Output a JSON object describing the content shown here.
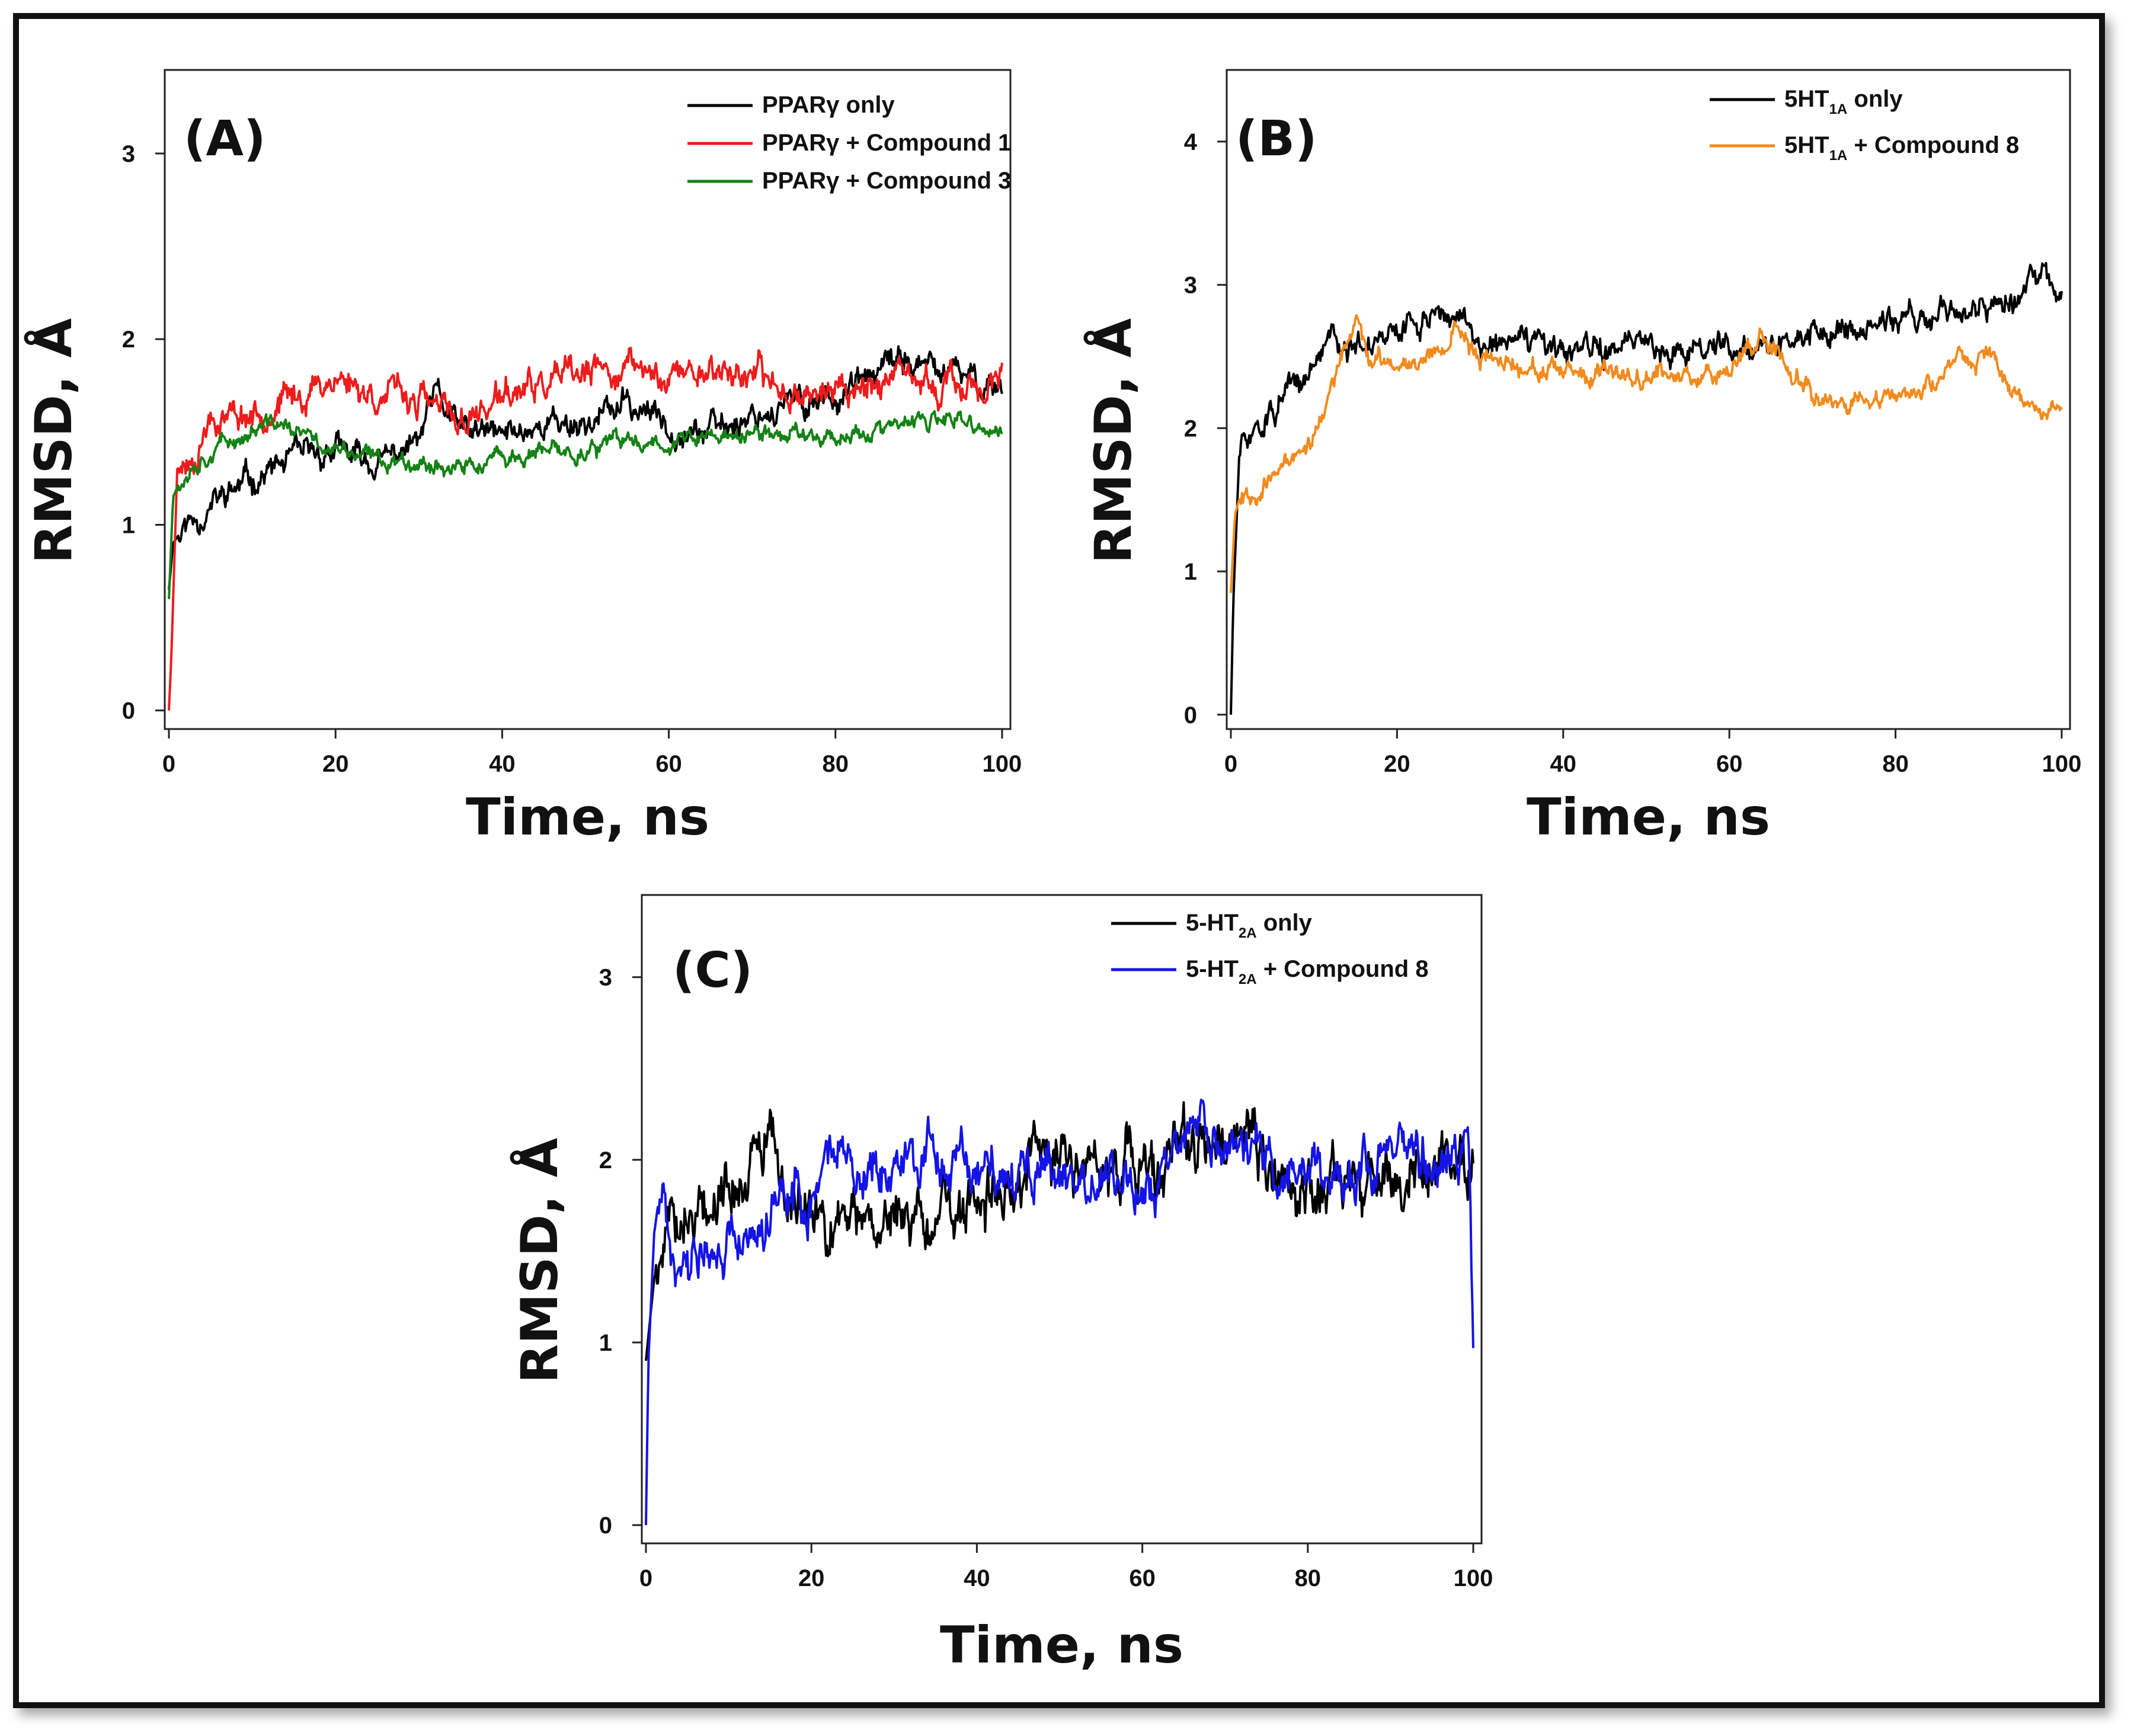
{
  "figure": {
    "frame_color": "#111111"
  },
  "chart_data": [
    {
      "type": "line",
      "id": "A",
      "panel_label": "(A)",
      "xlabel": "Time, ns",
      "ylabel": "RMSD, Å",
      "xlim": [
        -0.5,
        101
      ],
      "ylim": [
        -0.1,
        3.45
      ],
      "xticks": [
        0,
        20,
        40,
        60,
        80,
        100
      ],
      "yticks": [
        0,
        1,
        2,
        3
      ],
      "legend_position": "top-right",
      "series": [
        {
          "name": "PPARγ only",
          "legend": {
            "pre": "PPARγ only",
            "sub": "",
            "post": ""
          },
          "color": "#000000",
          "seed": 11,
          "noise": 0.055,
          "path": [
            [
              0,
              0.65
            ],
            [
              0.5,
              0.9
            ],
            [
              2,
              1.0
            ],
            [
              5,
              1.1
            ],
            [
              10,
              1.25
            ],
            [
              15,
              1.35
            ],
            [
              20,
              1.4
            ],
            [
              25,
              1.32
            ],
            [
              30,
              1.45
            ],
            [
              32,
              1.7
            ],
            [
              35,
              1.5
            ],
            [
              40,
              1.48
            ],
            [
              45,
              1.55
            ],
            [
              50,
              1.55
            ],
            [
              55,
              1.65
            ],
            [
              60,
              1.55
            ],
            [
              65,
              1.5
            ],
            [
              70,
              1.6
            ],
            [
              75,
              1.65
            ],
            [
              80,
              1.7
            ],
            [
              85,
              1.8
            ],
            [
              88,
              1.9
            ],
            [
              90,
              1.85
            ],
            [
              95,
              1.8
            ],
            [
              100,
              1.75
            ]
          ]
        },
        {
          "name": "PPARγ + Compound 1",
          "legend": {
            "pre": "PPARγ + Compound 1",
            "sub": "",
            "post": ""
          },
          "color": "#ee1c1c",
          "seed": 23,
          "noise": 0.06,
          "path": [
            [
              0,
              0.0
            ],
            [
              0.3,
              0.3
            ],
            [
              1,
              1.3
            ],
            [
              3,
              1.38
            ],
            [
              5,
              1.6
            ],
            [
              10,
              1.6
            ],
            [
              15,
              1.68
            ],
            [
              20,
              1.8
            ],
            [
              25,
              1.7
            ],
            [
              30,
              1.68
            ],
            [
              35,
              1.55
            ],
            [
              40,
              1.68
            ],
            [
              45,
              1.75
            ],
            [
              50,
              1.8
            ],
            [
              55,
              1.85
            ],
            [
              60,
              1.8
            ],
            [
              65,
              1.85
            ],
            [
              70,
              1.8
            ],
            [
              75,
              1.72
            ],
            [
              80,
              1.72
            ],
            [
              85,
              1.78
            ],
            [
              90,
              1.75
            ],
            [
              95,
              1.75
            ],
            [
              100,
              1.75
            ]
          ]
        },
        {
          "name": "PPARγ + Compound 3",
          "legend": {
            "pre": "PPARγ + Compound 3",
            "sub": "",
            "post": ""
          },
          "color": "#148214",
          "seed": 37,
          "noise": 0.035,
          "path": [
            [
              0,
              0.6
            ],
            [
              0.5,
              1.15
            ],
            [
              2,
              1.3
            ],
            [
              5,
              1.4
            ],
            [
              10,
              1.5
            ],
            [
              13,
              1.55
            ],
            [
              15,
              1.5
            ],
            [
              20,
              1.4
            ],
            [
              25,
              1.35
            ],
            [
              30,
              1.35
            ],
            [
              35,
              1.3
            ],
            [
              40,
              1.35
            ],
            [
              45,
              1.38
            ],
            [
              50,
              1.4
            ],
            [
              55,
              1.45
            ],
            [
              60,
              1.45
            ],
            [
              65,
              1.47
            ],
            [
              70,
              1.48
            ],
            [
              75,
              1.5
            ],
            [
              80,
              1.48
            ],
            [
              85,
              1.5
            ],
            [
              90,
              1.55
            ],
            [
              95,
              1.55
            ],
            [
              100,
              1.48
            ]
          ]
        }
      ]
    },
    {
      "type": "line",
      "id": "B",
      "panel_label": "(B)",
      "xlabel": "Time, ns",
      "ylabel": "RMSD, Å",
      "xlim": [
        -0.5,
        101
      ],
      "ylim": [
        -0.1,
        4.5
      ],
      "xticks": [
        0,
        20,
        40,
        60,
        80,
        100
      ],
      "yticks": [
        0,
        1,
        2,
        3,
        4
      ],
      "legend_position": "top-right",
      "series": [
        {
          "name": "5HT1A only",
          "legend": {
            "pre": "5HT",
            "sub": "1A",
            "post": " only"
          },
          "color": "#000000",
          "seed": 51,
          "noise": 0.07,
          "path": [
            [
              0,
              0.0
            ],
            [
              0.3,
              0.8
            ],
            [
              1,
              1.8
            ],
            [
              3,
              2.0
            ],
            [
              5,
              2.1
            ],
            [
              10,
              2.4
            ],
            [
              12,
              2.7
            ],
            [
              15,
              2.55
            ],
            [
              20,
              2.65
            ],
            [
              25,
              2.85
            ],
            [
              27,
              2.75
            ],
            [
              30,
              2.6
            ],
            [
              35,
              2.6
            ],
            [
              40,
              2.5
            ],
            [
              45,
              2.55
            ],
            [
              50,
              2.6
            ],
            [
              55,
              2.55
            ],
            [
              60,
              2.6
            ],
            [
              65,
              2.6
            ],
            [
              70,
              2.65
            ],
            [
              75,
              2.7
            ],
            [
              80,
              2.75
            ],
            [
              85,
              2.8
            ],
            [
              90,
              2.85
            ],
            [
              95,
              2.9
            ],
            [
              98,
              3.1
            ],
            [
              100,
              2.85
            ]
          ]
        },
        {
          "name": "5HT1A + Compound 8",
          "legend": {
            "pre": "5HT",
            "sub": "1A",
            "post": " + Compound 8"
          },
          "color": "#f28b1e",
          "seed": 67,
          "noise": 0.05,
          "path": [
            [
              0,
              0.85
            ],
            [
              0.5,
              1.4
            ],
            [
              1,
              1.5
            ],
            [
              5,
              1.65
            ],
            [
              10,
              1.95
            ],
            [
              13,
              2.4
            ],
            [
              15,
              2.75
            ],
            [
              17,
              2.45
            ],
            [
              20,
              2.45
            ],
            [
              25,
              2.55
            ],
            [
              27,
              2.7
            ],
            [
              30,
              2.5
            ],
            [
              35,
              2.45
            ],
            [
              40,
              2.35
            ],
            [
              45,
              2.35
            ],
            [
              50,
              2.4
            ],
            [
              55,
              2.35
            ],
            [
              60,
              2.45
            ],
            [
              64,
              2.65
            ],
            [
              67,
              2.45
            ],
            [
              70,
              2.25
            ],
            [
              75,
              2.2
            ],
            [
              80,
              2.2
            ],
            [
              85,
              2.3
            ],
            [
              88,
              2.5
            ],
            [
              92,
              2.5
            ],
            [
              94,
              2.2
            ],
            [
              100,
              2.15
            ]
          ]
        }
      ]
    },
    {
      "type": "line",
      "id": "C",
      "panel_label": "(C)",
      "xlabel": "Time, ns",
      "ylabel": "RMSD, Å",
      "xlim": [
        -0.5,
        101
      ],
      "ylim": [
        -0.1,
        3.45
      ],
      "xticks": [
        0,
        20,
        40,
        60,
        80,
        100
      ],
      "yticks": [
        0,
        1,
        2,
        3
      ],
      "legend_position": "top-right",
      "series": [
        {
          "name": "5-HT2A only",
          "legend": {
            "pre": "5-HT",
            "sub": "2A",
            "post": " only"
          },
          "color": "#000000",
          "seed": 79,
          "noise": 0.12,
          "path": [
            [
              0,
              0.9
            ],
            [
              1,
              1.35
            ],
            [
              3,
              1.7
            ],
            [
              5,
              1.75
            ],
            [
              10,
              1.85
            ],
            [
              15,
              2.05
            ],
            [
              17,
              1.8
            ],
            [
              20,
              1.7
            ],
            [
              25,
              1.65
            ],
            [
              30,
              1.7
            ],
            [
              35,
              1.65
            ],
            [
              40,
              1.7
            ],
            [
              45,
              1.9
            ],
            [
              47,
              2.1
            ],
            [
              50,
              2.0
            ],
            [
              55,
              1.95
            ],
            [
              60,
              1.9
            ],
            [
              65,
              2.05
            ],
            [
              70,
              2.0
            ],
            [
              73,
              2.1
            ],
            [
              75,
              1.9
            ],
            [
              80,
              1.8
            ],
            [
              85,
              1.85
            ],
            [
              90,
              1.9
            ],
            [
              95,
              1.95
            ],
            [
              100,
              1.95
            ]
          ]
        },
        {
          "name": "5-HT2A + Compound 8",
          "legend": {
            "pre": "5-HT",
            "sub": "2A",
            "post": " + Compound 8"
          },
          "color": "#1414e6",
          "seed": 91,
          "noise": 0.1,
          "path": [
            [
              0,
              0.0
            ],
            [
              0.3,
              0.9
            ],
            [
              1,
              1.6
            ],
            [
              2,
              1.9
            ],
            [
              3,
              1.55
            ],
            [
              5,
              1.5
            ],
            [
              10,
              1.55
            ],
            [
              15,
              1.75
            ],
            [
              20,
              1.8
            ],
            [
              22,
              2.0
            ],
            [
              25,
              1.95
            ],
            [
              30,
              2.0
            ],
            [
              35,
              2.05
            ],
            [
              40,
              1.9
            ],
            [
              45,
              1.9
            ],
            [
              50,
              1.95
            ],
            [
              55,
              1.9
            ],
            [
              60,
              1.85
            ],
            [
              65,
              2.1
            ],
            [
              67,
              2.2
            ],
            [
              70,
              2.05
            ],
            [
              75,
              2.0
            ],
            [
              80,
              1.95
            ],
            [
              85,
              1.95
            ],
            [
              90,
              2.0
            ],
            [
              95,
              2.0
            ],
            [
              99.5,
              2.05
            ],
            [
              100,
              0.95
            ]
          ]
        }
      ]
    }
  ]
}
